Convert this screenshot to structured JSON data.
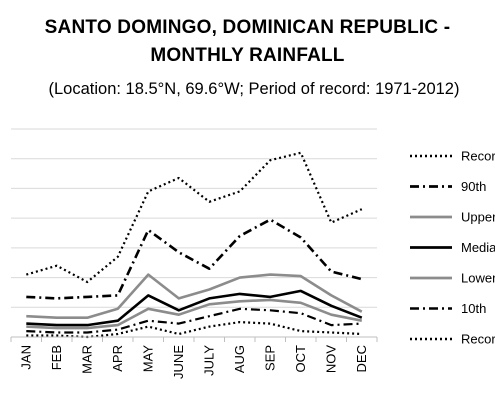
{
  "chart_data": {
    "type": "line",
    "title": "SANTO DOMINGO, DOMINICAN REPUBLIC -\nMONTHLY RAINFALL",
    "subtitle": "(Location: 18.5°N, 69.6°W; Period of record: 1971-2012)",
    "categories": [
      "JAN",
      "FEB",
      "MAR",
      "APR",
      "MAY",
      "JUNE",
      "JULY",
      "AUG",
      "SEP",
      "OCT",
      "NOV",
      "DEC"
    ],
    "ylim": [
      0,
      7
    ],
    "grid": true,
    "legend_position": "right",
    "series": [
      {
        "name": "Record",
        "style": "dotted",
        "color": "#000000",
        "width": 2.2,
        "values": [
          2.1,
          2.4,
          1.85,
          2.7,
          4.9,
          5.35,
          4.55,
          4.9,
          5.95,
          6.2,
          3.85,
          4.3
        ]
      },
      {
        "name": "90th",
        "style": "dashdot",
        "color": "#000000",
        "width": 2.6,
        "values": [
          1.35,
          1.3,
          1.35,
          1.4,
          3.6,
          2.85,
          2.3,
          3.4,
          3.95,
          3.35,
          2.2,
          1.95
        ]
      },
      {
        "name": "Upper",
        "style": "solid",
        "color": "#8c8c8c",
        "width": 2.6,
        "values": [
          0.7,
          0.65,
          0.65,
          0.95,
          2.1,
          1.3,
          1.6,
          2.0,
          2.1,
          2.05,
          1.4,
          0.85
        ]
      },
      {
        "name": "Median",
        "style": "solid",
        "color": "#000000",
        "width": 2.6,
        "values": [
          0.45,
          0.4,
          0.4,
          0.55,
          1.4,
          0.9,
          1.3,
          1.45,
          1.35,
          1.55,
          1.05,
          0.65
        ]
      },
      {
        "name": "Lower",
        "style": "solid",
        "color": "#8c8c8c",
        "width": 2.6,
        "values": [
          0.35,
          0.3,
          0.3,
          0.4,
          0.95,
          0.75,
          1.1,
          1.2,
          1.25,
          1.15,
          0.75,
          0.55
        ]
      },
      {
        "name": "10th",
        "style": "dashdot",
        "color": "#000000",
        "width": 2.2,
        "values": [
          0.2,
          0.15,
          0.15,
          0.25,
          0.55,
          0.45,
          0.7,
          0.95,
          0.9,
          0.8,
          0.4,
          0.45
        ]
      },
      {
        "name": "Record",
        "style": "dotted",
        "color": "#000000",
        "width": 2.2,
        "values": [
          0.05,
          0.05,
          0.0,
          0.1,
          0.35,
          0.1,
          0.35,
          0.5,
          0.45,
          0.2,
          0.15,
          0.1
        ]
      }
    ]
  }
}
